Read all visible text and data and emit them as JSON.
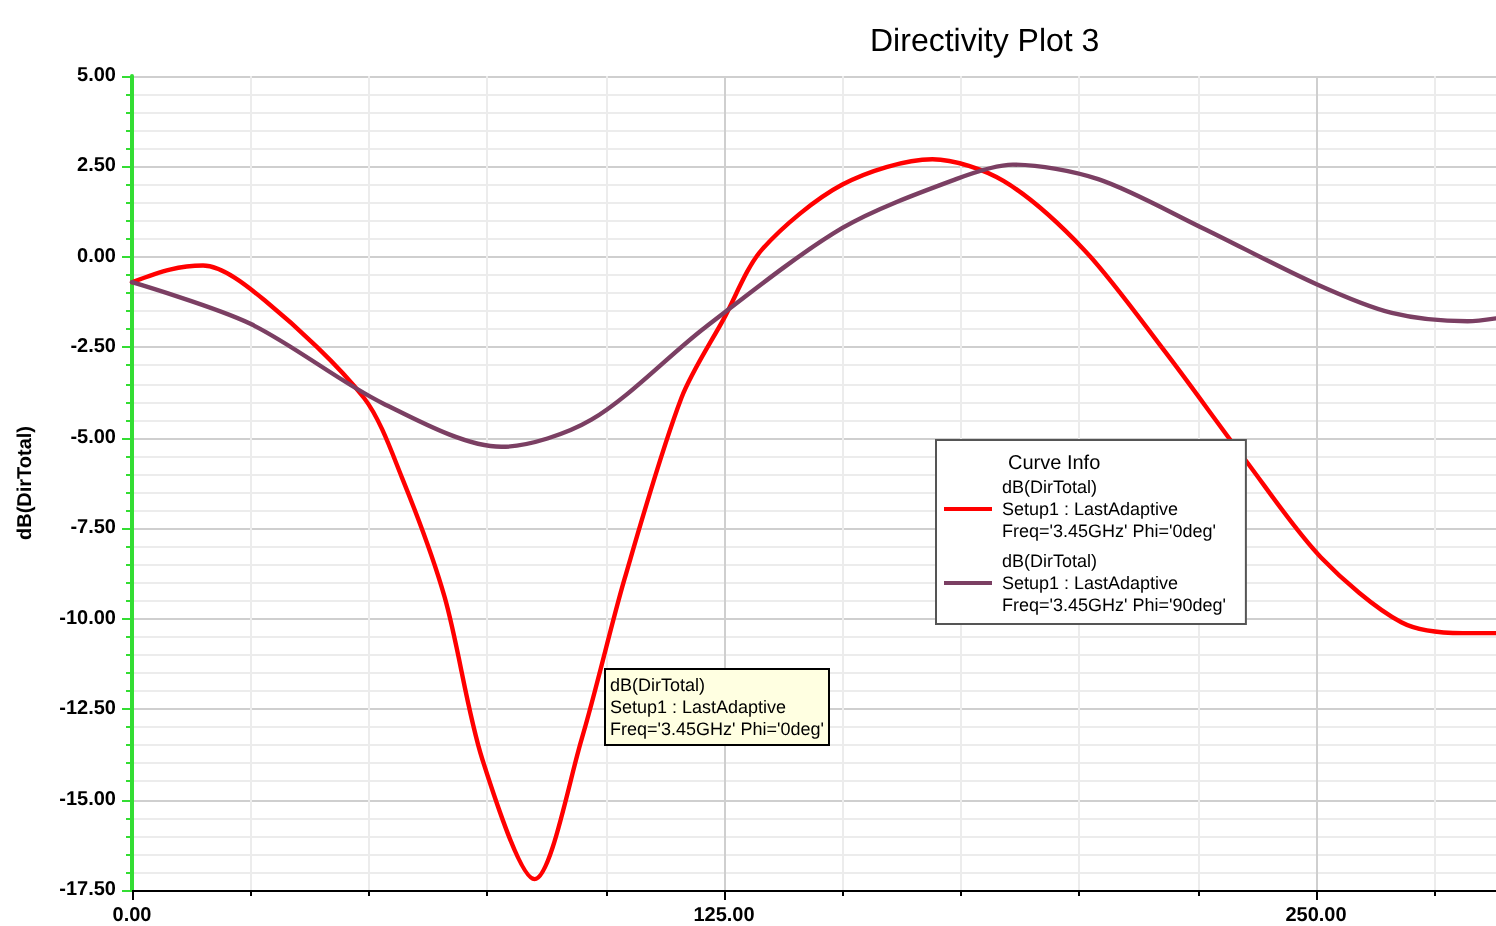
{
  "chart_data": {
    "type": "line",
    "title": "Directivity Plot 3",
    "ylabel": "dB(DirTotal)",
    "legend_title": "Curve Info",
    "legend": "right",
    "grid": true,
    "marker": "none",
    "line_style": "solid",
    "xlim": [
      0,
      288
    ],
    "xticks": [
      {
        "value": 0,
        "label": "0.00"
      },
      {
        "value": 125,
        "label": "125.00"
      },
      {
        "value": 250,
        "label": "250.00"
      }
    ],
    "ylim": [
      -17.5,
      5
    ],
    "yticks": [
      {
        "value": -17.5,
        "label": "-17.50"
      },
      {
        "value": -15,
        "label": "-15.00"
      },
      {
        "value": -12.5,
        "label": "-12.50"
      },
      {
        "value": -10,
        "label": "-10.00"
      },
      {
        "value": -7.5,
        "label": "-7.50"
      },
      {
        "value": -5,
        "label": "-5.00"
      },
      {
        "value": -2.5,
        "label": "-2.50"
      },
      {
        "value": 0,
        "label": "0.00"
      },
      {
        "value": 2.5,
        "label": "2.50"
      },
      {
        "value": 5,
        "label": "5.00"
      }
    ],
    "annotations": [
      "dB(DirTotal)\nSetup1 : LastAdaptive\nFreq='3.45GHz' Phi='0deg'"
    ],
    "series": [
      {
        "name": "dB(DirTotal)\nSetup1 : LastAdaptive\nFreq='3.45GHz' Phi='0deg'",
        "color": "#ff0000",
        "x": [
          0,
          8,
          15,
          28,
          49,
          57,
          66,
          74,
          85,
          95,
          104,
          116,
          125,
          133,
          150,
          169,
          184,
          201,
          218,
          235,
          251,
          268,
          281,
          288
        ],
        "values": [
          -0.7,
          -0.35,
          -0.24,
          -1.2,
          -3.9,
          -6.1,
          -9.4,
          -13.9,
          -17.2,
          -13.3,
          -8.9,
          -3.9,
          -1.7,
          0.2,
          2.0,
          2.7,
          2.1,
          0.2,
          -2.6,
          -5.6,
          -8.3,
          -10.1,
          -10.4,
          -10.4
        ]
      },
      {
        "name": "dB(DirTotal)\nSetup1 : LastAdaptive\nFreq='3.45GHz' Phi='90deg'",
        "color": "#7b3f63",
        "x": [
          0,
          25,
          53,
          78,
          97,
          121,
          150,
          174,
          186,
          204,
          226,
          250,
          266,
          282,
          288
        ],
        "values": [
          -0.7,
          -1.85,
          -4.05,
          -5.25,
          -4.5,
          -1.95,
          0.8,
          2.15,
          2.55,
          2.15,
          0.8,
          -0.75,
          -1.55,
          -1.78,
          -1.7
        ]
      }
    ]
  }
}
